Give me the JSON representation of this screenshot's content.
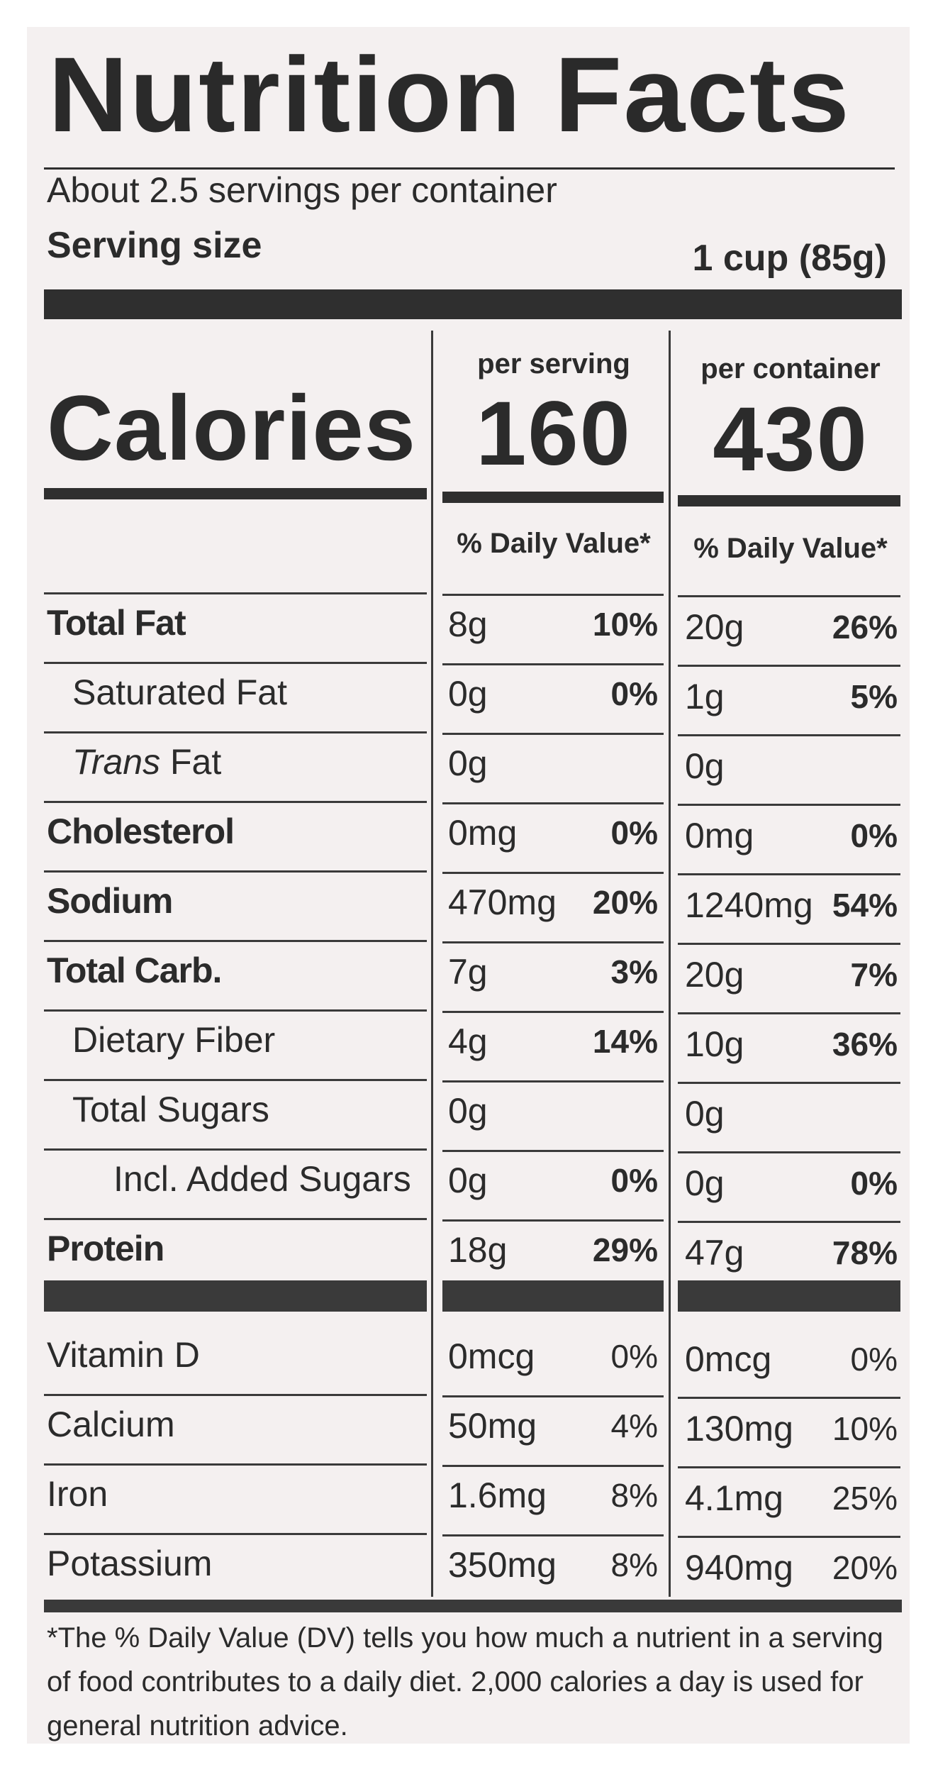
{
  "title": "Nutrition Facts",
  "servings_per_container": "About 2.5 servings per container",
  "serving_size": {
    "label": "Serving size",
    "value": "1 cup (85g)"
  },
  "calories": {
    "label": "Calories",
    "per_serving_label": "per serving",
    "per_container_label": "per container",
    "per_serving": "160",
    "per_container": "430"
  },
  "dv_header": "% Daily Value*",
  "nutrients": [
    {
      "name": "Total Fat",
      "style": "bold",
      "indent": 0,
      "serving_amt": "8g",
      "serving_dv": "10%",
      "container_amt": "20g",
      "container_dv": "26%"
    },
    {
      "name": "Saturated Fat",
      "style": "normal",
      "indent": 1,
      "serving_amt": "0g",
      "serving_dv": "0%",
      "container_amt": "1g",
      "container_dv": "5%"
    },
    {
      "name_italic": "Trans",
      "name_rest": " Fat",
      "style": "normal",
      "indent": 1,
      "serving_amt": "0g",
      "serving_dv": "",
      "container_amt": "0g",
      "container_dv": ""
    },
    {
      "name": "Cholesterol",
      "style": "bold",
      "indent": 0,
      "serving_amt": "0mg",
      "serving_dv": "0%",
      "container_amt": "0mg",
      "container_dv": "0%"
    },
    {
      "name": "Sodium",
      "style": "bold",
      "indent": 0,
      "serving_amt": "470mg",
      "serving_dv": "20%",
      "container_amt": "1240mg",
      "container_dv": "54%"
    },
    {
      "name": "Total Carb.",
      "style": "bold",
      "indent": 0,
      "serving_amt": "7g",
      "serving_dv": "3%",
      "container_amt": "20g",
      "container_dv": "7%"
    },
    {
      "name": "Dietary Fiber",
      "style": "normal",
      "indent": 1,
      "serving_amt": "4g",
      "serving_dv": "14%",
      "container_amt": "10g",
      "container_dv": "36%"
    },
    {
      "name": "Total Sugars",
      "style": "normal",
      "indent": 1,
      "serving_amt": "0g",
      "serving_dv": "",
      "container_amt": "0g",
      "container_dv": ""
    },
    {
      "name": "Incl. Added Sugars",
      "style": "normal",
      "indent": 2,
      "serving_amt": "0g",
      "serving_dv": "0%",
      "container_amt": "0g",
      "container_dv": "0%"
    },
    {
      "name": "Protein",
      "style": "bold",
      "indent": 0,
      "serving_amt": "18g",
      "serving_dv": "29%",
      "container_amt": "47g",
      "container_dv": "78%"
    }
  ],
  "vitamins": [
    {
      "name": "Vitamin D",
      "serving_amt": "0mcg",
      "serving_dv": "0%",
      "container_amt": "0mcg",
      "container_dv": "0%"
    },
    {
      "name": "Calcium",
      "serving_amt": "50mg",
      "serving_dv": "4%",
      "container_amt": "130mg",
      "container_dv": "10%"
    },
    {
      "name": "Iron",
      "serving_amt": "1.6mg",
      "serving_dv": "8%",
      "container_amt": "4.1mg",
      "container_dv": "25%"
    },
    {
      "name": "Potassium",
      "serving_amt": "350mg",
      "serving_dv": "8%",
      "container_amt": "940mg",
      "container_dv": "20%"
    }
  ],
  "footnote": "*The % Daily Value (DV) tells you how much a nutrient in a serving of food contributes to a daily diet. 2,000 calories a day is used for general nutrition advice."
}
